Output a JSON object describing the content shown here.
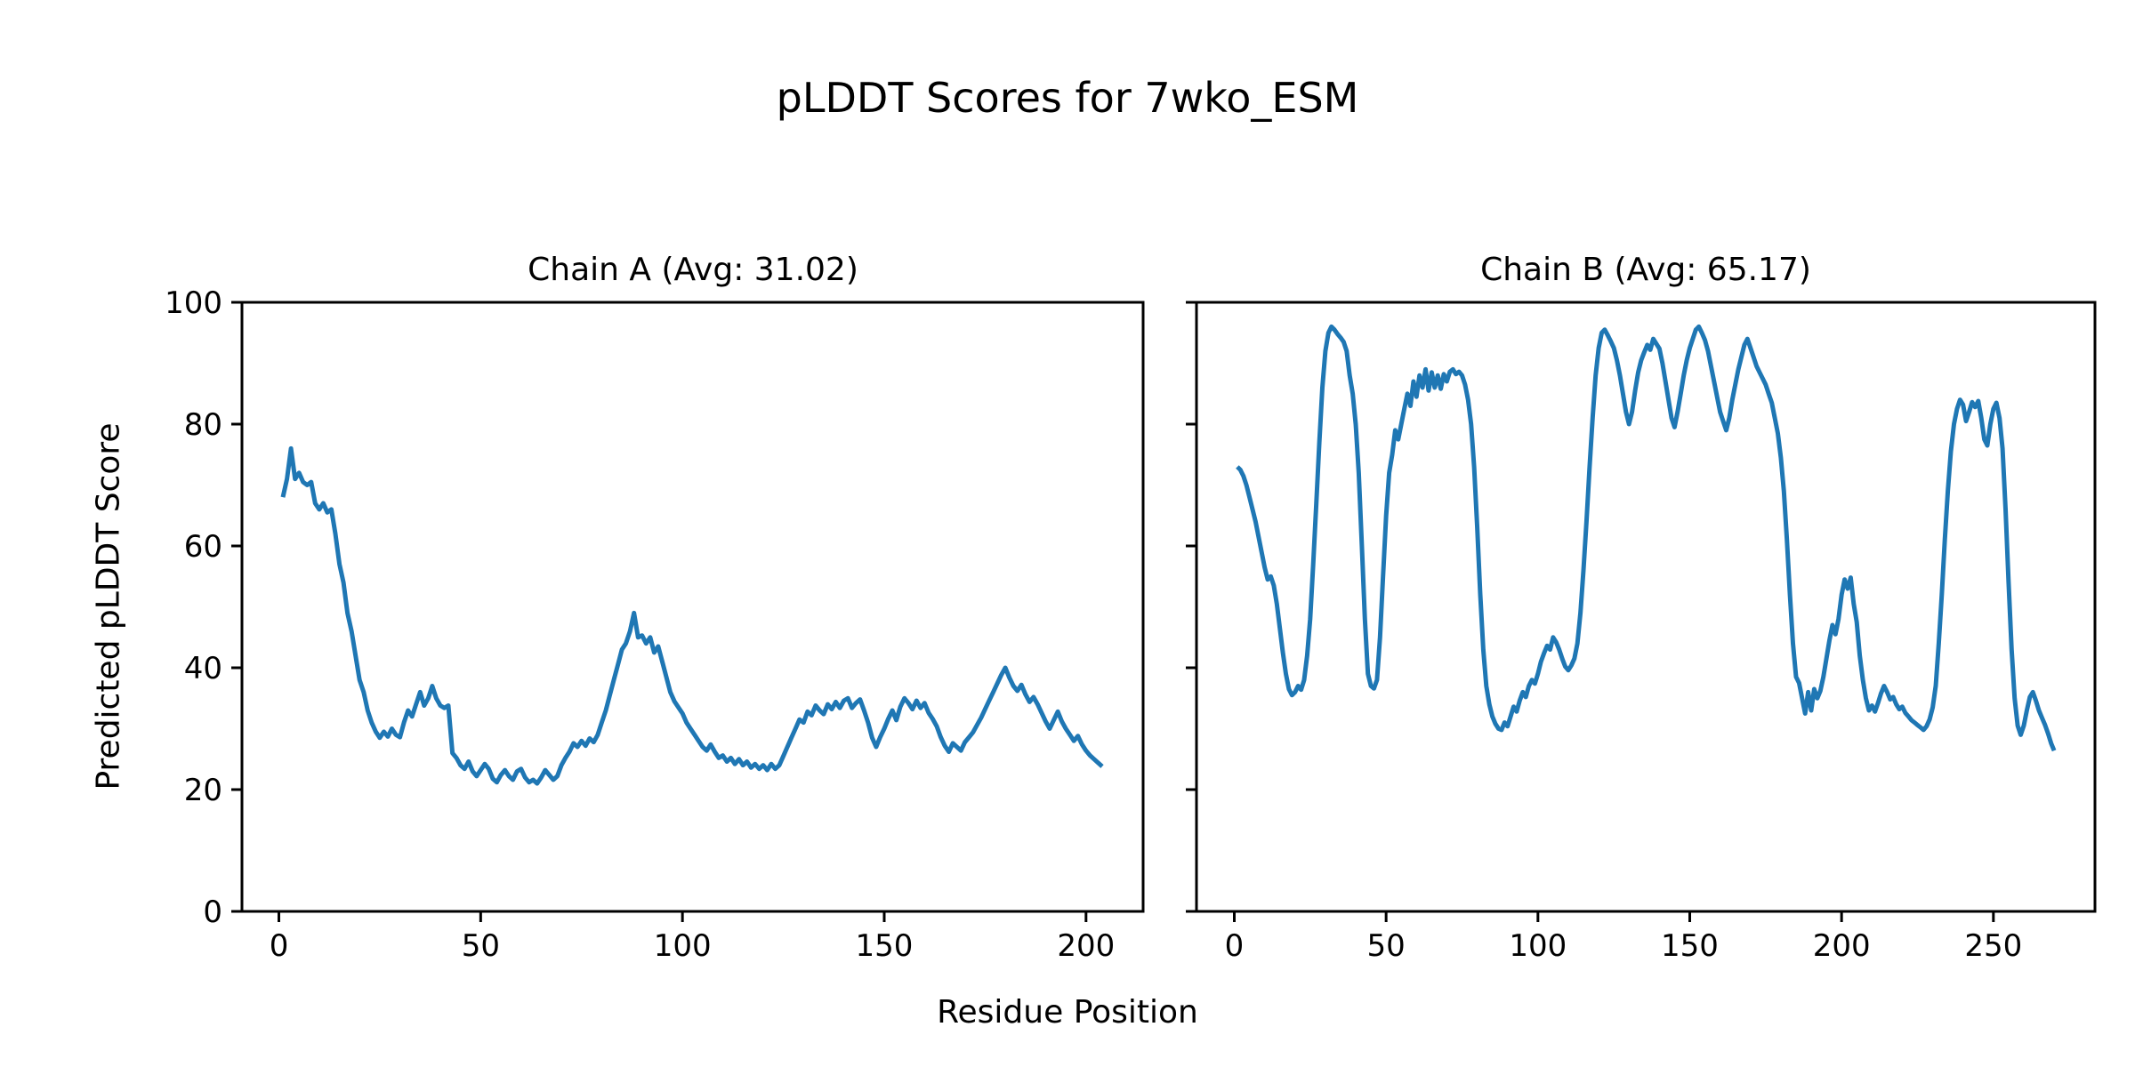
{
  "figure": {
    "title": "pLDDT Scores for 7wko_ESM",
    "xlabel": "Residue Position",
    "ylabel": "Predicted pLDDT Score",
    "background_color": "#ffffff",
    "text_color": "#000000",
    "spine_color": "#000000"
  },
  "chart_data": [
    {
      "type": "line",
      "title": "Chain A (Avg: 31.02)",
      "chain": "A",
      "avg_plddt": 31.02,
      "line_color": "#1f77b4",
      "grid": false,
      "legend": false,
      "xlim": [
        -9.15,
        214.15
      ],
      "ylim": [
        0,
        100
      ],
      "xticks": [
        0,
        50,
        100,
        150,
        200
      ],
      "yticks": [
        0,
        20,
        40,
        60,
        80,
        100
      ],
      "show_ytick_labels": true,
      "x_start": 1,
      "y": [
        68,
        71,
        76,
        71,
        72,
        70.5,
        70,
        70.5,
        67,
        66,
        67,
        65.5,
        66,
        62,
        57,
        54,
        49,
        46,
        42,
        38,
        36,
        33,
        31,
        29.5,
        28.5,
        29.5,
        28.7,
        30,
        29,
        28.6,
        31,
        33,
        32,
        34,
        36,
        33.8,
        35,
        37,
        35,
        33.8,
        33.4,
        33.8,
        26,
        25.2,
        24,
        23.4,
        24.6,
        23,
        22.2,
        23.2,
        24.2,
        23.4,
        21.8,
        21.2,
        22.4,
        23.2,
        22.2,
        21.6,
        23,
        23.4,
        22,
        21.2,
        21.6,
        21,
        22,
        23.2,
        22.4,
        21.6,
        22.2,
        24,
        25.2,
        26.2,
        27.6,
        27,
        28,
        27.2,
        28.4,
        27.8,
        29,
        31,
        33,
        35.5,
        38,
        40.5,
        43,
        44,
        46,
        49,
        45,
        45.3,
        44,
        45,
        42.5,
        43.5,
        41,
        38.5,
        36,
        34.5,
        33.5,
        32.5,
        31,
        30,
        29,
        28,
        27,
        26.4,
        27.4,
        26.2,
        25.2,
        25.6,
        24.6,
        25.2,
        24.2,
        25,
        24,
        24.6,
        23.6,
        24.2,
        23.4,
        24,
        23.2,
        24.2,
        23.4,
        24,
        25.5,
        27,
        28.5,
        30,
        31.5,
        31,
        32.8,
        32.2,
        33.8,
        33,
        32.4,
        34,
        33.2,
        34.4,
        33.4,
        34.6,
        35,
        33.4,
        34.2,
        34.8,
        33,
        31,
        28.5,
        27,
        28.6,
        30,
        31.6,
        33,
        31.4,
        33.6,
        35,
        34.2,
        33.2,
        34.6,
        33.4,
        34.2,
        32.6,
        31.6,
        30.4,
        28.6,
        27.2,
        26.2,
        27.6,
        27,
        26.4,
        27.8,
        28.6,
        29.4,
        30.6,
        31.8,
        33.2,
        34.6,
        36,
        37.4,
        38.8,
        40,
        38.4,
        37,
        36.2,
        37.2,
        35.6,
        34.4,
        35.2,
        34,
        32.6,
        31.2,
        30,
        31.4,
        32.8,
        31.2,
        30,
        29,
        28,
        28.8,
        27.4,
        26.4,
        25.6,
        25,
        24.4,
        23.8
      ]
    },
    {
      "type": "line",
      "title": "Chain B (Avg: 65.17)",
      "chain": "B",
      "avg_plddt": 65.17,
      "line_color": "#1f77b4",
      "grid": false,
      "legend": false,
      "xlim": [
        -12.45,
        283.45
      ],
      "ylim": [
        0,
        100
      ],
      "xticks": [
        0,
        50,
        100,
        150,
        200,
        250
      ],
      "yticks": [
        0,
        20,
        40,
        60,
        80,
        100
      ],
      "show_ytick_labels": false,
      "x_start": 1,
      "y": [
        73,
        72.5,
        71.5,
        70,
        68,
        66,
        64,
        61.5,
        59,
        56.5,
        54.5,
        55,
        53.5,
        50.5,
        46.5,
        42.5,
        39,
        36.5,
        35.5,
        36,
        37,
        36.4,
        38,
        42,
        48,
        57,
        67,
        77,
        86,
        92,
        95,
        96,
        95.5,
        94.8,
        94.2,
        93.5,
        92,
        88,
        85,
        80,
        72,
        60,
        48,
        39,
        37,
        36.6,
        38,
        45,
        55,
        65,
        72,
        75,
        79,
        77.5,
        80,
        82.5,
        85,
        83,
        87,
        84.5,
        88,
        86,
        89,
        85.5,
        88.5,
        86,
        88,
        85.8,
        88.2,
        87,
        88.6,
        89,
        88.2,
        88.6,
        88,
        86.5,
        84,
        80,
        73,
        63,
        52,
        43,
        37,
        34,
        32,
        30.8,
        30,
        29.8,
        31,
        30.4,
        32,
        33.6,
        32.8,
        34.6,
        36,
        35.2,
        37,
        38,
        37.4,
        39,
        41,
        42.4,
        43.6,
        43,
        45,
        44.2,
        43,
        41.5,
        40.2,
        39.6,
        40.4,
        41.5,
        44,
        49,
        56,
        64,
        73,
        81,
        88,
        92.5,
        95,
        95.5,
        94.6,
        93.6,
        92.5,
        90.5,
        88,
        85,
        82,
        80,
        82,
        85.5,
        88.5,
        90.5,
        91.8,
        93,
        92.2,
        94,
        93.2,
        92.4,
        90,
        87,
        84,
        81,
        79.5,
        82,
        85,
        88,
        90.5,
        92.5,
        94,
        95.5,
        96,
        95,
        93.8,
        92,
        89.5,
        87,
        84.5,
        82,
        80.5,
        79,
        81,
        84,
        86.5,
        89,
        91,
        93,
        94,
        92.5,
        91,
        89.5,
        88.5,
        87.5,
        86.5,
        85,
        83.5,
        81,
        78.5,
        74.5,
        69,
        61,
        52,
        44,
        38.5,
        37.5,
        35,
        32.5,
        36,
        33,
        36.5,
        35,
        36.2,
        38.5,
        41.5,
        44.5,
        47,
        45.5,
        48,
        52,
        54.5,
        53,
        54.8,
        50.5,
        47.5,
        42,
        38,
        35,
        33,
        33.8,
        32.8,
        34.2,
        35.8,
        37,
        36,
        34.8,
        35.2,
        34,
        33.2,
        33.6,
        32.6,
        32,
        31.4,
        31,
        30.6,
        30.2,
        29.8,
        30.4,
        31.5,
        33.5,
        37,
        44,
        52,
        61,
        69,
        75.5,
        80,
        82.5,
        84,
        83.2,
        80.5,
        82,
        83.6,
        82.8,
        83.8,
        81,
        77.5,
        76.5,
        80,
        82.5,
        83.5,
        81,
        76,
        66,
        54,
        43,
        35,
        30.5,
        29,
        30.5,
        33,
        35.2,
        36,
        34.6,
        33,
        31.8,
        30.6,
        29.2,
        27.6,
        26.4
      ]
    }
  ]
}
